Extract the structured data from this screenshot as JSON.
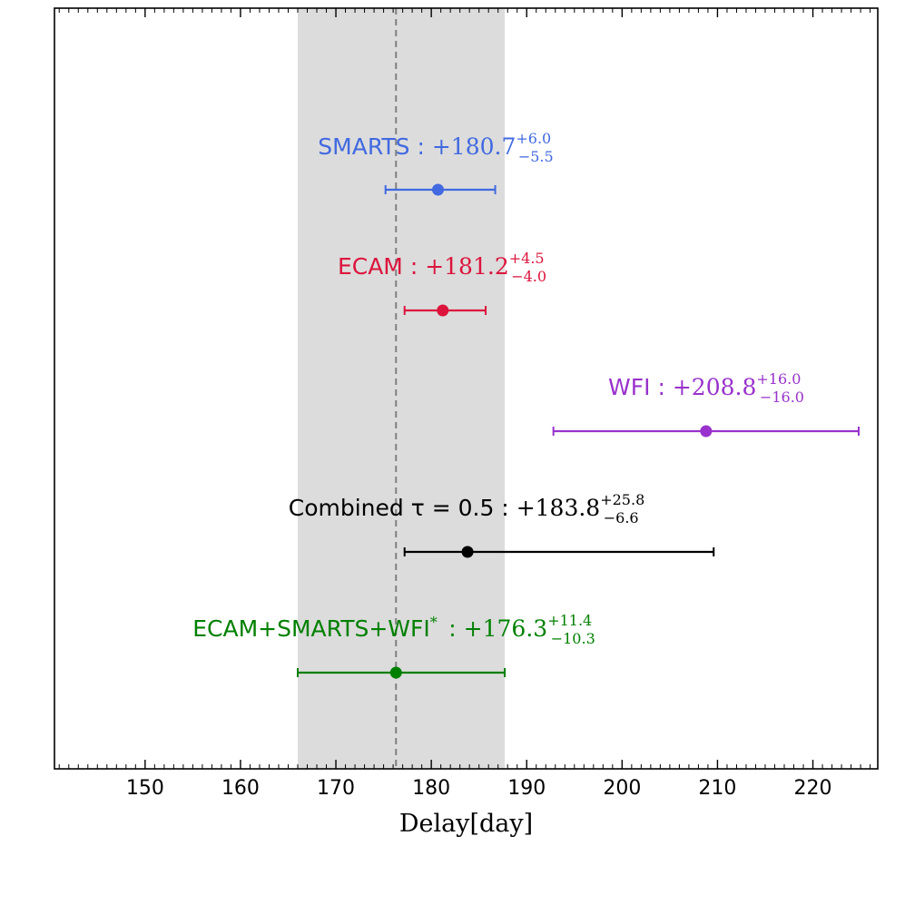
{
  "chart_data": {
    "type": "scatter",
    "title": "",
    "xlabel": "Delay[day]",
    "ylabel": "",
    "xlim": [
      140.5,
      226.8
    ],
    "x_ticks": [
      150,
      160,
      170,
      180,
      190,
      200,
      210,
      220
    ],
    "x_minor_step": 1,
    "grid": false,
    "reference": {
      "line_x": 176.3,
      "line_style": "dashed",
      "line_color": "#808080",
      "band": [
        166.0,
        187.7
      ],
      "band_color": "#dcdcdc"
    },
    "series": [
      {
        "name": "SMARTS",
        "name_suffix": "",
        "value": 180.7,
        "err_plus": 6.0,
        "err_minus": 5.5,
        "value_text": "+180.7",
        "plus_text": "+6.0",
        "minus_text": "−5.5",
        "color": "#4169e1"
      },
      {
        "name": "ECAM",
        "name_suffix": "",
        "value": 181.2,
        "err_plus": 4.5,
        "err_minus": 4.0,
        "value_text": "+181.2",
        "plus_text": "+4.5",
        "minus_text": "−4.0",
        "color": "#dc143c"
      },
      {
        "name": "WFI",
        "name_suffix": "",
        "value": 208.8,
        "err_plus": 16.0,
        "err_minus": 16.0,
        "value_text": "+208.8",
        "plus_text": "+16.0",
        "minus_text": "−16.0",
        "color": "#9932cc"
      },
      {
        "name": "Combined τ = 0.5",
        "name_suffix": "",
        "value": 183.8,
        "err_plus": 25.8,
        "err_minus": 6.6,
        "value_text": "+183.8",
        "plus_text": "+25.8",
        "minus_text": "−6.6",
        "color": "#000000"
      },
      {
        "name": "ECAM+SMARTS+WFI",
        "name_suffix": "*",
        "value": 176.3,
        "err_plus": 11.4,
        "err_minus": 10.3,
        "value_text": "+176.3",
        "plus_text": "+11.4",
        "minus_text": "−10.3",
        "color": "#008000"
      }
    ]
  }
}
